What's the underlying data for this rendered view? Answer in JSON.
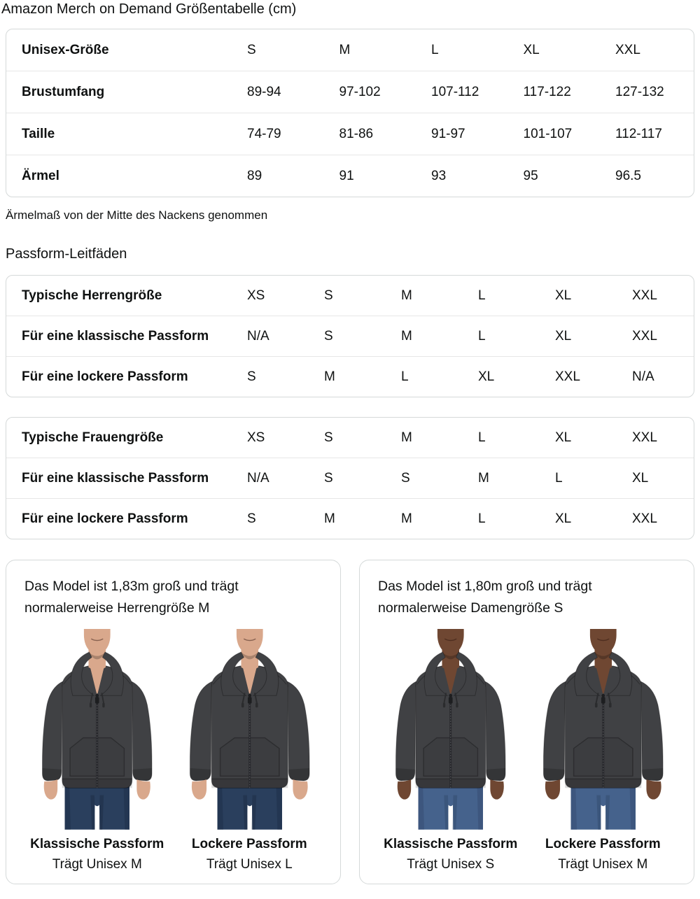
{
  "page": {
    "title": "Amazon Merch on Demand Größentabelle (cm)"
  },
  "note": "Ärmelmaß von der Mitte des Nackens genommen",
  "fit_guides_heading": "Passform-Leitfäden",
  "tables": {
    "size": {
      "rows": [
        {
          "label": "Unisex-Größe",
          "values": [
            "S",
            "M",
            "L",
            "XL",
            "XXL"
          ]
        },
        {
          "label": "Brustumfang",
          "values": [
            "89-94",
            "97-102",
            "107-112",
            "117-122",
            "127-132"
          ]
        },
        {
          "label": "Taille",
          "values": [
            "74-79",
            "81-86",
            "91-97",
            "101-107",
            "112-117"
          ]
        },
        {
          "label": "Ärmel",
          "values": [
            "89",
            "91",
            "93",
            "95",
            "96.5"
          ]
        }
      ]
    },
    "fits": [
      {
        "rows": [
          {
            "label": "Typische Herrengröße",
            "values": [
              "XS",
              "S",
              "M",
              "L",
              "XL",
              "XXL"
            ]
          },
          {
            "label": "Für eine klassische Passform",
            "values": [
              "N/A",
              "S",
              "M",
              "L",
              "XL",
              "XXL"
            ]
          },
          {
            "label": "Für eine lockere Passform",
            "values": [
              "S",
              "M",
              "L",
              "XL",
              "XXL",
              "N/A"
            ]
          }
        ]
      },
      {
        "rows": [
          {
            "label": "Typische Frauengröße",
            "values": [
              "XS",
              "S",
              "M",
              "L",
              "XL",
              "XXL"
            ]
          },
          {
            "label": "Für eine klassische Passform",
            "values": [
              "N/A",
              "S",
              "S",
              "M",
              "L",
              "XL"
            ]
          },
          {
            "label": "Für eine lockere Passform",
            "values": [
              "S",
              "M",
              "M",
              "L",
              "XL",
              "XXL"
            ]
          }
        ]
      }
    ]
  },
  "model_cards": [
    {
      "description": "Das Model ist 1,83m groß und trägt normalerweise Herrengröße M",
      "figures": [
        {
          "variant": "male-classic",
          "fit_label": "Klassische Passform",
          "size_label": "Trägt Unisex M"
        },
        {
          "variant": "male-loose",
          "fit_label": "Lockere Passform",
          "size_label": "Trägt Unisex L"
        }
      ]
    },
    {
      "description": "Das Model ist 1,80m groß und trägt normalerweise Damengröße S",
      "figures": [
        {
          "variant": "female-classic",
          "fit_label": "Klassische Passform",
          "size_label": "Trägt Unisex S"
        },
        {
          "variant": "female-loose",
          "fit_label": "Lockere Passform",
          "size_label": "Trägt Unisex M"
        }
      ]
    }
  ],
  "colors": {
    "text": "#0f1111",
    "table_border": "#d5d9d9",
    "row_divider": "#e7e7e7",
    "hoodie": "#404144",
    "hoodie_dark": "#2b2c2e",
    "skin_male": "#d9a88c",
    "skin_female": "#6f4732",
    "jeans_male": "#2a3f5d",
    "jeans_male_dark": "#1b2c44",
    "jeans_female": "#45628c",
    "jeans_female_dark": "#32496c"
  }
}
